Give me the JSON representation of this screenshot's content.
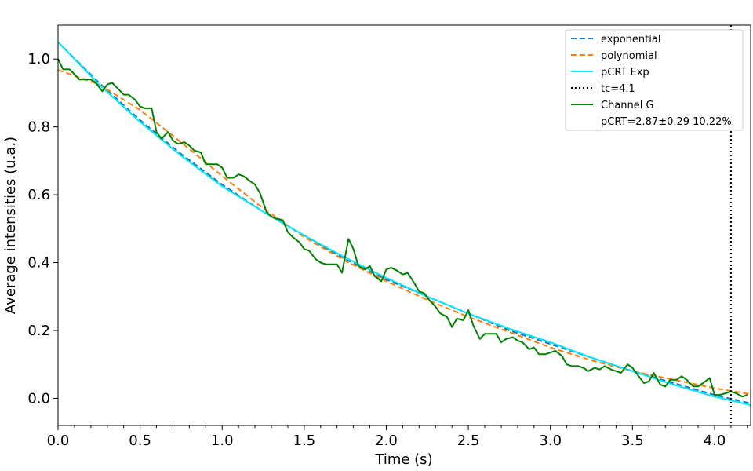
{
  "chart_data": {
    "type": "line",
    "title": "",
    "xlabel": "Time (s)",
    "ylabel": "Average intensities (u.a.)",
    "xlim": [
      0.0,
      4.22
    ],
    "ylim": [
      -0.08,
      1.1
    ],
    "xticks": [
      0.0,
      0.5,
      1.0,
      1.5,
      2.0,
      2.5,
      3.0,
      3.5,
      4.0
    ],
    "xtick_labels": [
      "0.0",
      "0.5",
      "1.0",
      "1.5",
      "2.0",
      "2.5",
      "3.0",
      "3.5",
      "4.0"
    ],
    "yticks": [
      0.0,
      0.2,
      0.4,
      0.6,
      0.8,
      1.0
    ],
    "ytick_labels": [
      "0.0",
      "0.2",
      "0.4",
      "0.6",
      "0.8",
      "1.0"
    ],
    "grid": false,
    "legend_position": "top-right",
    "series": [
      {
        "name": "exponential",
        "style": "dashed",
        "color": "#1f77b4",
        "x": [
          0.0,
          0.25,
          0.5,
          0.75,
          1.0,
          1.25,
          1.5,
          1.75,
          2.0,
          2.25,
          2.5,
          2.75,
          3.0,
          3.25,
          3.5,
          3.75,
          4.0,
          4.22
        ],
        "y": [
          1.05,
          0.93,
          0.82,
          0.72,
          0.63,
          0.55,
          0.48,
          0.41,
          0.35,
          0.3,
          0.25,
          0.2,
          0.16,
          0.12,
          0.08,
          0.045,
          0.01,
          -0.015
        ]
      },
      {
        "name": "polynomial",
        "style": "dashed",
        "color": "#ff7f0e",
        "x": [
          0.0,
          0.25,
          0.5,
          0.75,
          1.0,
          1.25,
          1.5,
          1.75,
          2.0,
          2.25,
          2.5,
          2.75,
          3.0,
          3.25,
          3.5,
          3.75,
          4.0,
          4.22
        ],
        "y": [
          0.968,
          0.925,
          0.85,
          0.755,
          0.655,
          0.56,
          0.475,
          0.405,
          0.345,
          0.29,
          0.24,
          0.195,
          0.15,
          0.112,
          0.08,
          0.055,
          0.03,
          0.012
        ]
      },
      {
        "name": "pCRT Exp",
        "style": "solid",
        "color": "#00e5ff",
        "x": [
          0.0,
          0.25,
          0.5,
          0.75,
          1.0,
          1.25,
          1.5,
          1.75,
          2.0,
          2.25,
          2.5,
          2.75,
          3.0,
          3.25,
          3.5,
          3.75,
          4.0,
          4.22
        ],
        "y": [
          1.05,
          0.925,
          0.815,
          0.715,
          0.625,
          0.55,
          0.48,
          0.415,
          0.355,
          0.3,
          0.25,
          0.205,
          0.165,
          0.12,
          0.08,
          0.04,
          0.005,
          -0.02
        ]
      },
      {
        "name": "tc=4.1",
        "style": "dotted",
        "color": "#000000",
        "orientation": "vertical",
        "x": 4.1
      },
      {
        "name": "Channel G",
        "style": "solid",
        "color": "#008000",
        "x": [
          0.0,
          0.03,
          0.07,
          0.1,
          0.13,
          0.17,
          0.2,
          0.23,
          0.27,
          0.3,
          0.33,
          0.37,
          0.4,
          0.43,
          0.47,
          0.5,
          0.53,
          0.57,
          0.6,
          0.63,
          0.67,
          0.7,
          0.73,
          0.77,
          0.8,
          0.83,
          0.87,
          0.9,
          0.93,
          0.97,
          1.0,
          1.03,
          1.07,
          1.1,
          1.13,
          1.17,
          1.2,
          1.23,
          1.27,
          1.3,
          1.33,
          1.37,
          1.4,
          1.43,
          1.47,
          1.5,
          1.53,
          1.57,
          1.6,
          1.63,
          1.67,
          1.7,
          1.73,
          1.77,
          1.8,
          1.83,
          1.87,
          1.9,
          1.93,
          1.97,
          2.0,
          2.03,
          2.07,
          2.1,
          2.13,
          2.17,
          2.2,
          2.23,
          2.27,
          2.3,
          2.33,
          2.37,
          2.4,
          2.43,
          2.47,
          2.5,
          2.53,
          2.57,
          2.6,
          2.63,
          2.67,
          2.7,
          2.73,
          2.77,
          2.8,
          2.83,
          2.87,
          2.9,
          2.93,
          2.97,
          3.0,
          3.03,
          3.07,
          3.1,
          3.13,
          3.17,
          3.2,
          3.23,
          3.27,
          3.3,
          3.33,
          3.37,
          3.4,
          3.43,
          3.47,
          3.5,
          3.53,
          3.57,
          3.6,
          3.63,
          3.67,
          3.7,
          3.73,
          3.77,
          3.8,
          3.83,
          3.87,
          3.9,
          3.93,
          3.97,
          4.0,
          4.03,
          4.07,
          4.1,
          4.13,
          4.17,
          4.2
        ],
        "y": [
          1.0,
          0.97,
          0.97,
          0.955,
          0.94,
          0.94,
          0.94,
          0.93,
          0.905,
          0.925,
          0.93,
          0.91,
          0.895,
          0.895,
          0.88,
          0.86,
          0.855,
          0.855,
          0.785,
          0.765,
          0.785,
          0.76,
          0.75,
          0.755,
          0.745,
          0.73,
          0.725,
          0.69,
          0.69,
          0.69,
          0.68,
          0.65,
          0.65,
          0.66,
          0.655,
          0.64,
          0.63,
          0.605,
          0.55,
          0.535,
          0.53,
          0.525,
          0.49,
          0.475,
          0.46,
          0.44,
          0.435,
          0.41,
          0.4,
          0.395,
          0.395,
          0.395,
          0.37,
          0.47,
          0.44,
          0.39,
          0.38,
          0.39,
          0.36,
          0.345,
          0.38,
          0.385,
          0.375,
          0.365,
          0.37,
          0.34,
          0.315,
          0.31,
          0.285,
          0.27,
          0.25,
          0.24,
          0.21,
          0.235,
          0.23,
          0.26,
          0.215,
          0.175,
          0.19,
          0.19,
          0.19,
          0.165,
          0.175,
          0.18,
          0.17,
          0.165,
          0.145,
          0.15,
          0.13,
          0.13,
          0.135,
          0.14,
          0.125,
          0.1,
          0.095,
          0.095,
          0.09,
          0.08,
          0.09,
          0.085,
          0.095,
          0.085,
          0.08,
          0.075,
          0.1,
          0.09,
          0.07,
          0.045,
          0.05,
          0.075,
          0.04,
          0.035,
          0.055,
          0.055,
          0.065,
          0.055,
          0.035,
          0.035,
          0.045,
          0.06,
          0.01,
          0.01,
          0.015,
          0.02,
          0.015,
          0.005,
          0.01
        ]
      },
      {
        "name": "pCRT=2.87±0.29 10.22%",
        "style": "none",
        "color": "#ffffff"
      }
    ]
  }
}
